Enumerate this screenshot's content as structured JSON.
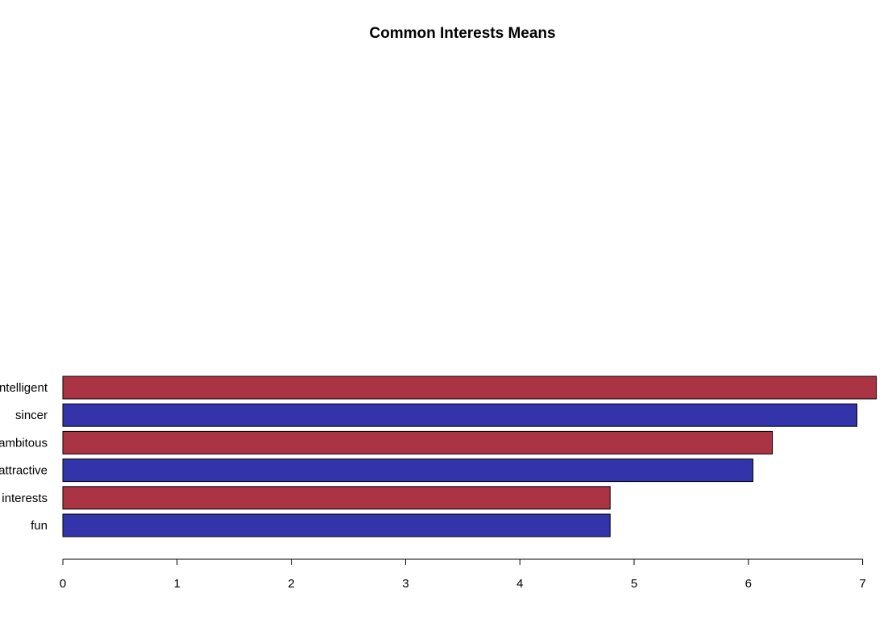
{
  "chart_data": {
    "type": "bar",
    "orientation": "horizontal",
    "title": "Common Interests Means",
    "xlabel": "",
    "ylabel": "",
    "categories": [
      "fun",
      "interests",
      "attractive",
      "ambitous",
      "sincer",
      "intelligent"
    ],
    "values": [
      4.79,
      4.79,
      6.04,
      6.21,
      6.95,
      7.12
    ],
    "colors": [
      "#3333aa",
      "#aa3344",
      "#3333aa",
      "#aa3344",
      "#3333aa",
      "#aa3344"
    ],
    "xlim": [
      0,
      7.15
    ],
    "xticks": [
      0,
      1,
      2,
      3,
      4,
      5,
      6,
      7
    ],
    "grid": false,
    "legend": "none"
  }
}
